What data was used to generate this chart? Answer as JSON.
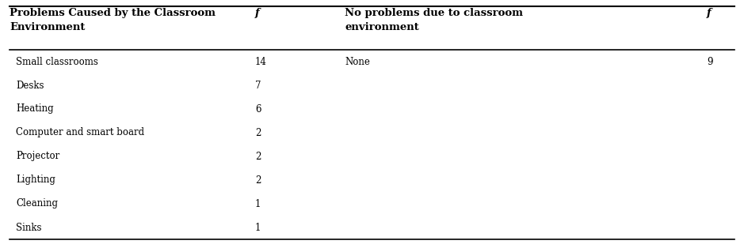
{
  "col1_header_line1": "Problems Caused by the Classroom",
  "col1_header_line2": "Environment",
  "col2_header": "f",
  "col3_header_line1": "No problems due to classroom",
  "col3_header_line2": "environment",
  "col4_header": "f",
  "left_rows": [
    [
      "Small classrooms",
      "14"
    ],
    [
      "Desks",
      "7"
    ],
    [
      "Heating",
      "6"
    ],
    [
      "Computer and smart board",
      "2"
    ],
    [
      "Projector",
      "2"
    ],
    [
      "Lighting",
      "2"
    ],
    [
      "Cleaning",
      "1"
    ],
    [
      "Sinks",
      "1"
    ]
  ],
  "right_rows": [
    [
      "None",
      "9"
    ],
    [
      "",
      ""
    ],
    [
      "",
      ""
    ],
    [
      "",
      ""
    ],
    [
      "",
      ""
    ],
    [
      "",
      ""
    ],
    [
      "",
      ""
    ],
    [
      "",
      ""
    ]
  ],
  "background_color": "#ffffff",
  "text_color": "#000000",
  "fig_width": 9.39,
  "fig_height": 3.14,
  "dpi": 100,
  "font_size": 8.5,
  "header_font_size": 9.5
}
